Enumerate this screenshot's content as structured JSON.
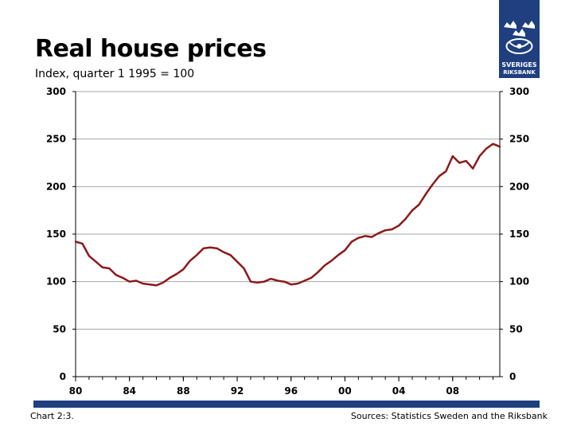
{
  "header": {
    "title": "Real house prices",
    "subtitle": "Index, quarter 1 1995 = 100"
  },
  "logo": {
    "text_line1": "SVERIGES",
    "text_line2": "RIKSBANK",
    "icon": "riksbank-crest-icon"
  },
  "footer": {
    "chart_label": "Chart 2:3.",
    "sources": "Sources: Statistics Sweden and the Riksbank"
  },
  "colors": {
    "series": "#8b1a1a",
    "brand": "#1f3f7f",
    "grid": "#a6a6a6"
  },
  "chart_data": {
    "type": "line",
    "title": "Real house prices",
    "subtitle": "Index, quarter 1 1995 = 100",
    "xlabel": "",
    "ylabel": "",
    "xlim": [
      1980,
      2011.5
    ],
    "ylim": [
      0,
      300
    ],
    "yticks": [
      0,
      50,
      100,
      150,
      200,
      250,
      300
    ],
    "xticks": [
      1980,
      1984,
      1988,
      1992,
      1996,
      2000,
      2004,
      2008
    ],
    "xtick_labels": [
      "80",
      "84",
      "88",
      "92",
      "96",
      "00",
      "04",
      "08"
    ],
    "y_axis_both_sides": true,
    "grid": "horizontal",
    "series": [
      {
        "x": [
          1980,
          1980.5,
          1981,
          1981.5,
          1982,
          1982.5,
          1983,
          1983.5,
          1984,
          1984.5,
          1985,
          1985.5,
          1986,
          1986.5,
          1987,
          1987.5,
          1988,
          1988.5,
          1989,
          1989.5,
          1990,
          1990.5,
          1991,
          1991.5,
          1992,
          1992.5,
          1993,
          1993.5,
          1994,
          1994.5,
          1995,
          1995.5,
          1996,
          1996.5,
          1997,
          1997.5,
          1998,
          1998.5,
          1999,
          1999.5,
          2000,
          2000.5,
          2001,
          2001.5,
          2002,
          2002.5,
          2003,
          2003.5,
          2004,
          2004.5,
          2005,
          2005.5,
          2006,
          2006.5,
          2007,
          2007.5,
          2008,
          2008.5,
          2009,
          2009.5,
          2010,
          2010.5,
          2011,
          2011.5
        ],
        "values": [
          142,
          140,
          127,
          121,
          115,
          114,
          107,
          104,
          100,
          101,
          98,
          97,
          96,
          99,
          104,
          108,
          113,
          122,
          128,
          135,
          136,
          135,
          131,
          128,
          121,
          114,
          100,
          99,
          100,
          103,
          101,
          100,
          97,
          98,
          101,
          104,
          110,
          117,
          122,
          128,
          133,
          142,
          146,
          148,
          147,
          151,
          154,
          155,
          159,
          166,
          175,
          181,
          192,
          202,
          211,
          216,
          232,
          225,
          227,
          219,
          232,
          240,
          245,
          242
        ]
      }
    ]
  }
}
